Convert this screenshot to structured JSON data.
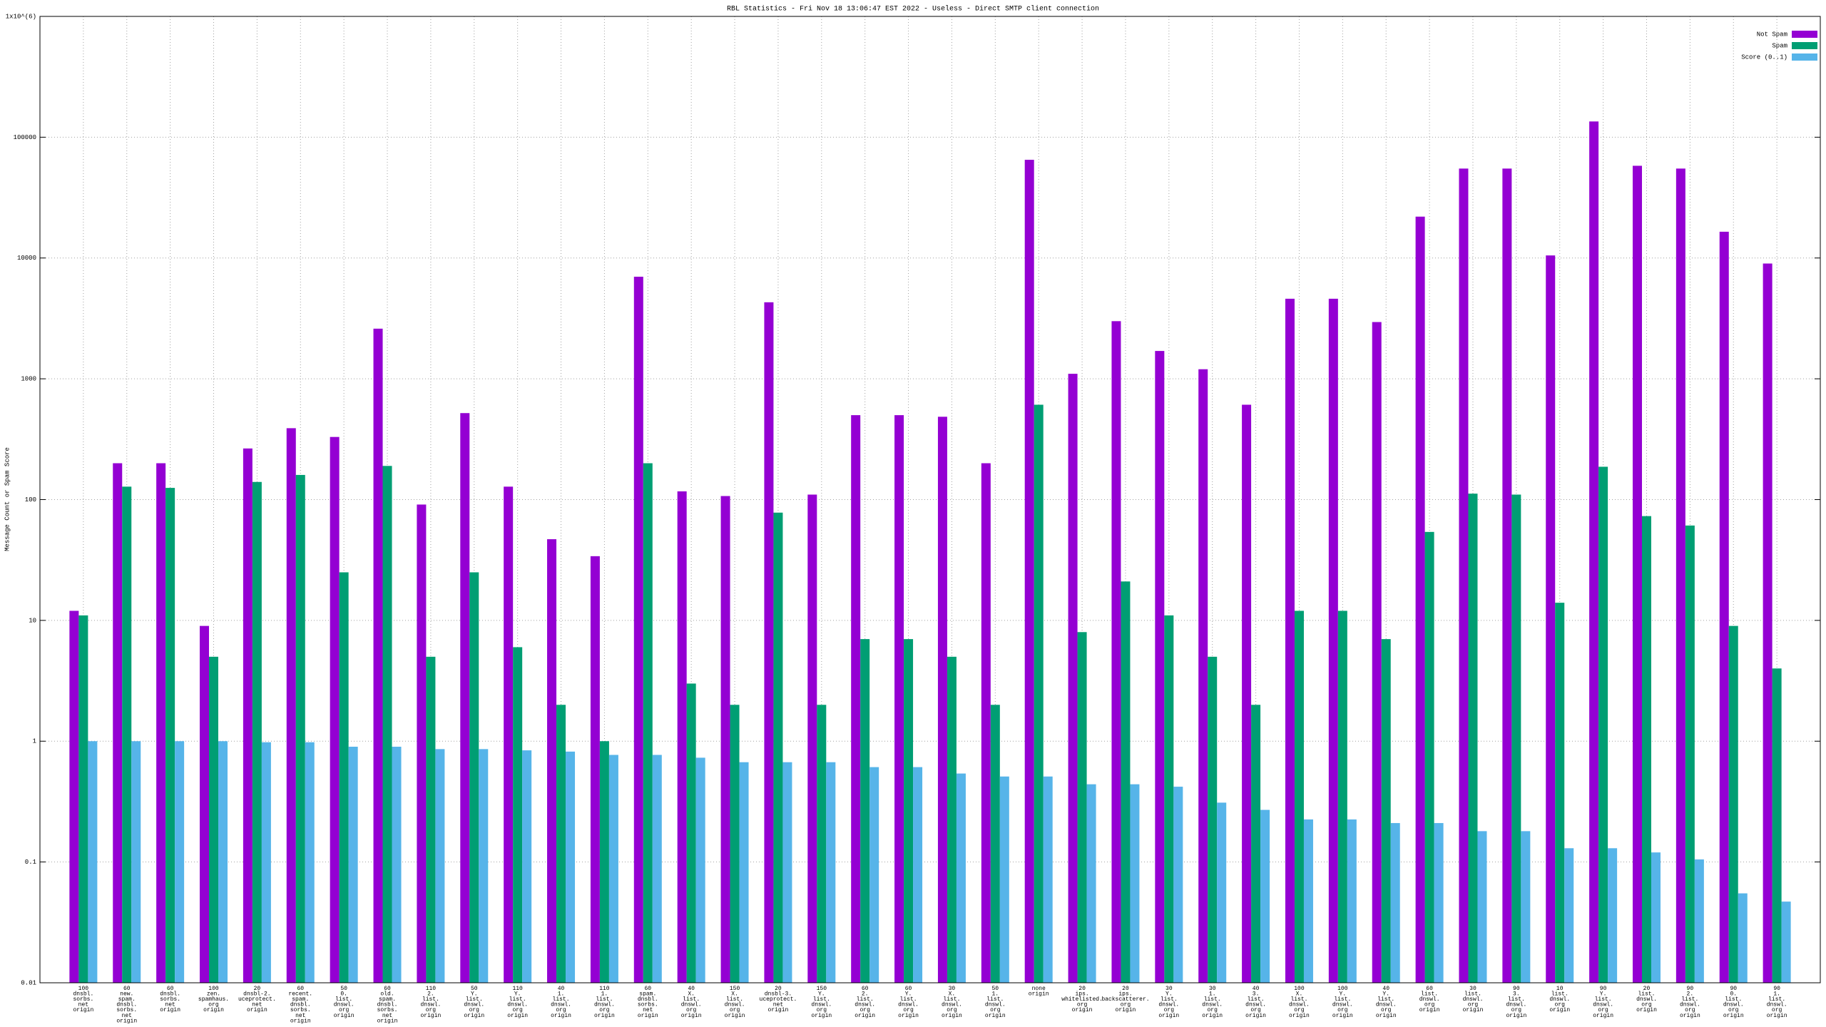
{
  "chart_data": {
    "type": "bar",
    "title": "RBL Statistics - Fri Nov 18 13:06:47 EST 2022 - Useless - Direct SMTP client connection",
    "y_label": "Message Count or Spam Score",
    "log_scale": true,
    "grid": true,
    "legend_position": "top-right",
    "ylim": [
      0.01,
      1000000
    ],
    "yticks": [
      0.01,
      0.1,
      1,
      10,
      100,
      1000,
      10000,
      100000,
      {
        "value": 1000000,
        "label": "1x10^(6)"
      }
    ],
    "categories": [
      [
        "100",
        "dnsbl.",
        "sorbs.",
        "net",
        "origin"
      ],
      [
        "60",
        "new.",
        "spam.",
        "dnsbl.",
        "sorbs.",
        "net",
        "origin"
      ],
      [
        "60",
        "dnsbl.",
        "sorbs.",
        "net",
        "origin"
      ],
      [
        "100",
        "zen.",
        "spamhaus.",
        "org",
        "origin"
      ],
      [
        "20",
        "dnsbl-2.",
        "uceprotect.",
        "net",
        "origin"
      ],
      [
        "60",
        "recent.",
        "spam.",
        "dnsbl.",
        "sorbs.",
        "net",
        "origin"
      ],
      [
        "50",
        "0.",
        "list.",
        "dnswl.",
        "org",
        "origin"
      ],
      [
        "60",
        "old.",
        "spam.",
        "dnsbl.",
        "sorbs.",
        "net",
        "origin"
      ],
      [
        "110",
        "2.",
        "list.",
        "dnswl.",
        "org",
        "origin"
      ],
      [
        "50",
        "Y.",
        "list.",
        "dnswl.",
        "org",
        "origin"
      ],
      [
        "110",
        "Y.",
        "list.",
        "dnswl.",
        "org",
        "origin"
      ],
      [
        "40",
        "1.",
        "list.",
        "dnswl.",
        "org",
        "origin"
      ],
      [
        "110",
        "1.",
        "list.",
        "dnswl.",
        "org",
        "origin"
      ],
      [
        "60",
        "spam.",
        "dnsbl.",
        "sorbs.",
        "net",
        "origin"
      ],
      [
        "40",
        "X.",
        "list.",
        "dnswl.",
        "org",
        "origin"
      ],
      [
        "150",
        "X.",
        "list.",
        "dnswl.",
        "org",
        "origin"
      ],
      [
        "20",
        "dnsbl-3.",
        "uceprotect.",
        "net",
        "origin"
      ],
      [
        "150",
        "Y.",
        "list.",
        "dnswl.",
        "org",
        "origin"
      ],
      [
        "60",
        "2.",
        "list.",
        "dnswl.",
        "org",
        "origin"
      ],
      [
        "60",
        "Y.",
        "list.",
        "dnswl.",
        "org",
        "origin"
      ],
      [
        "30",
        "X.",
        "list.",
        "dnswl.",
        "org",
        "origin"
      ],
      [
        "50",
        "1.",
        "list.",
        "dnswl.",
        "org",
        "origin"
      ],
      [
        "none",
        "origin"
      ],
      [
        "20",
        "ips.",
        "whitelisted.",
        "org",
        "origin"
      ],
      [
        "20",
        "ips.",
        "backscatterer.",
        "org",
        "origin"
      ],
      [
        "30",
        "Y.",
        "list.",
        "dnswl.",
        "org",
        "origin"
      ],
      [
        "30",
        "1.",
        "list.",
        "dnswl.",
        "org",
        "origin"
      ],
      [
        "40",
        "3.",
        "list.",
        "dnswl.",
        "org",
        "origin"
      ],
      [
        "100",
        "X.",
        "list.",
        "dnswl.",
        "org",
        "origin"
      ],
      [
        "100",
        "Y.",
        "list.",
        "dnswl.",
        "org",
        "origin"
      ],
      [
        "40",
        "Y.",
        "list.",
        "dnswl.",
        "org",
        "origin"
      ],
      [
        "60",
        "list.",
        "dnswl.",
        "org",
        "origin"
      ],
      [
        "30",
        "list.",
        "dnswl.",
        "org",
        "origin"
      ],
      [
        "90",
        "3.",
        "list.",
        "dnswl.",
        "org",
        "origin"
      ],
      [
        "10",
        "list.",
        "dnswl.",
        "org",
        "origin"
      ],
      [
        "90",
        "Y.",
        "list.",
        "dnswl.",
        "org",
        "origin"
      ],
      [
        "20",
        "list.",
        "dnswl.",
        "org",
        "origin"
      ],
      [
        "90",
        "2.",
        "list.",
        "dnswl.",
        "org",
        "origin"
      ],
      [
        "90",
        "0.",
        "list.",
        "dnswl.",
        "org",
        "origin"
      ],
      [
        "90",
        "1.",
        "list.",
        "dnswl.",
        "org",
        "origin"
      ]
    ],
    "series": [
      {
        "name": "Not Spam",
        "color": "#9400d3",
        "values": [
          12,
          200,
          200,
          9,
          265,
          390,
          330,
          2600,
          91,
          520,
          128,
          47,
          34,
          7000,
          117,
          107,
          4300,
          110,
          500,
          500,
          485,
          200,
          65000,
          1100,
          3000,
          1700,
          1200,
          610,
          4600,
          4600,
          2950,
          22000,
          55000,
          55000,
          10500,
          135000,
          58000,
          55000,
          16500,
          9000
        ]
      },
      {
        "name": "Spam",
        "color": "#009e73",
        "values": [
          11,
          128,
          125,
          5,
          140,
          160,
          25,
          190,
          5,
          25,
          6,
          2,
          1,
          200,
          3,
          2,
          78,
          2,
          7,
          7,
          5,
          2,
          610,
          8,
          21,
          11,
          5,
          2,
          12,
          12,
          7,
          54,
          112,
          110,
          14,
          187,
          73,
          61,
          9,
          4
        ]
      },
      {
        "name": "Score (0..1)",
        "color": "#56b4e9",
        "values": [
          1,
          1,
          1,
          1,
          0.98,
          0.98,
          0.9,
          0.9,
          0.86,
          0.86,
          0.84,
          0.82,
          0.77,
          0.77,
          0.73,
          0.67,
          0.67,
          0.67,
          0.61,
          0.61,
          0.54,
          0.51,
          0.51,
          0.44,
          0.44,
          0.42,
          0.31,
          0.27,
          0.225,
          0.225,
          0.21,
          0.21,
          0.18,
          0.18,
          0.13,
          0.13,
          0.12,
          0.105,
          0.055,
          0.047
        ]
      }
    ]
  }
}
